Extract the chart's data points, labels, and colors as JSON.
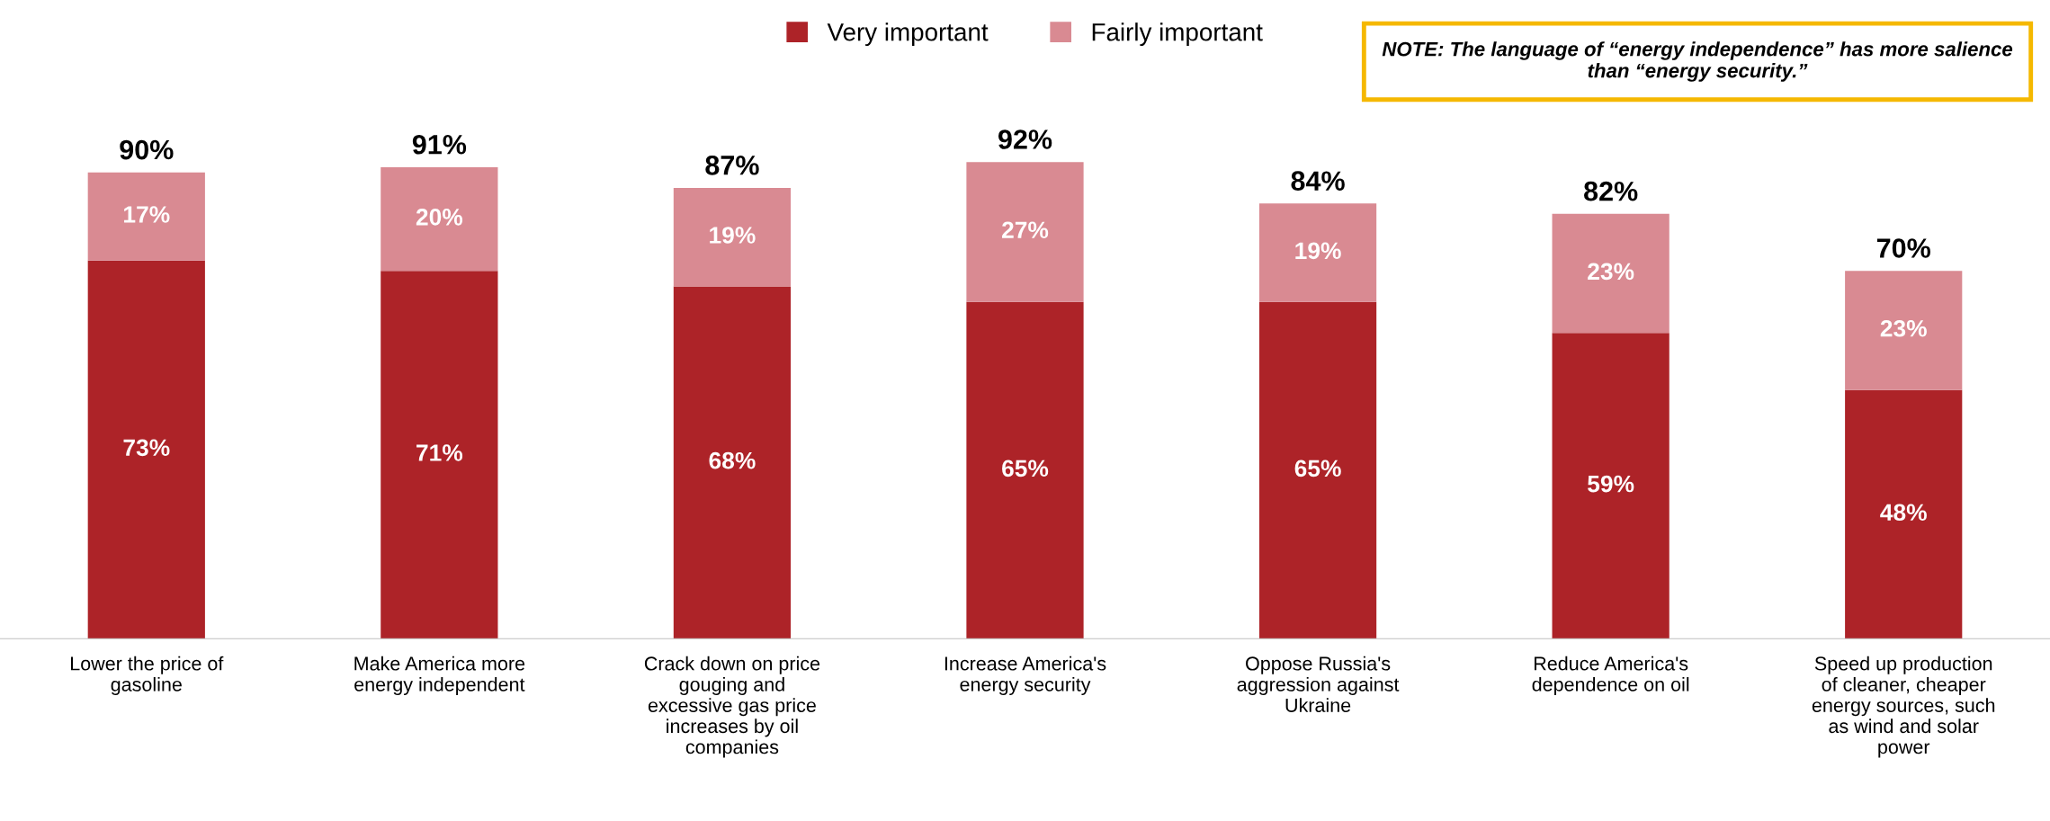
{
  "chart_data": {
    "type": "bar",
    "stacked": true,
    "legend": "top",
    "grid": false,
    "categories": [
      "Lower the price of\ngasoline",
      "Make America more\nenergy independent",
      "Crack down on price\ngouging and\nexcessive gas price\nincreases by oil\ncompanies",
      "Increase America's\nenergy security",
      "Oppose Russia's\naggression against\nUkraine",
      "Reduce America's\ndependence on oil",
      "Speed up production\nof cleaner, cheaper\nenergy sources, such\nas wind and solar\npower"
    ],
    "series": [
      {
        "name": "Very important",
        "color": "#ad2328",
        "values": [
          73,
          71,
          68,
          65,
          65,
          59,
          48
        ],
        "value_labels": [
          "73%",
          "71%",
          "68%",
          "65%",
          "65%",
          "59%",
          "48%"
        ]
      },
      {
        "name": "Fairly important",
        "color": "#d98a92",
        "values": [
          17,
          20,
          19,
          27,
          19,
          23,
          23
        ],
        "value_labels": [
          "17%",
          "20%",
          "19%",
          "27%",
          "19%",
          "23%",
          "23%"
        ]
      }
    ],
    "totals": [
      "90%",
      "91%",
      "87%",
      "92%",
      "84%",
      "82%",
      "70%"
    ],
    "annotations": [
      "NOTE: The language of “energy independence” has more salience than “energy security.”"
    ]
  }
}
